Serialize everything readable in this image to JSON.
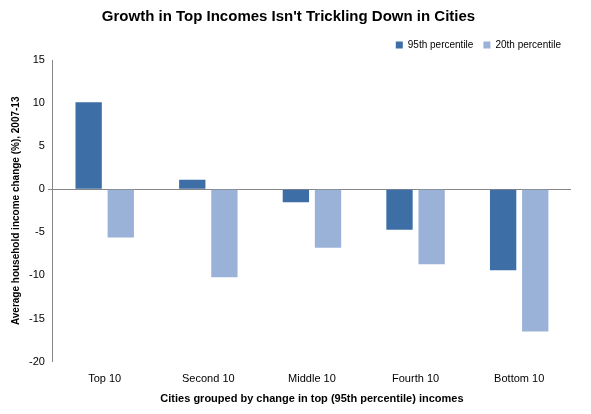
{
  "chart_data": {
    "type": "bar",
    "title": "Growth in Top Incomes Isn't Trickling Down in Cities",
    "x_label": "Cities grouped by change in top (95th percentile) incomes",
    "y_label": "Average household income change (%), 2007-13",
    "categories": [
      "Top 10",
      "Second 10",
      "Middle 10",
      "Fourth 10",
      "Bottom 10"
    ],
    "series": [
      {
        "name": "95th percentile",
        "color": "#3e6ea6",
        "values": [
          10.1,
          1.1,
          -1.5,
          -4.7,
          -9.4
        ]
      },
      {
        "name": "20th percentile",
        "color": "#9bb2d8",
        "values": [
          -5.6,
          -10.2,
          -6.8,
          -8.7,
          -16.5
        ]
      }
    ],
    "ylim": [
      -20,
      15
    ],
    "yticks": [
      -20,
      -15,
      -10,
      -5,
      0,
      5,
      10,
      15
    ],
    "grid": false,
    "legend": "top"
  }
}
